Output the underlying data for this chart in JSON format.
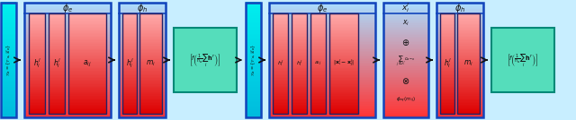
{
  "fig_width": 6.4,
  "fig_height": 1.34,
  "dpi": 100,
  "bg_color": "#C8EEFF",
  "cyan_top": "#00EEEE",
  "cyan_bot": "#00BBDD",
  "outer_top": "#AADDFF",
  "outer_bot": "#FF3333",
  "inner_top": "#FFAAAA",
  "inner_bot": "#DD0000",
  "teal_fill": "#55DDBB",
  "teal_edge": "#008877",
  "border_blue": "#1144BB",
  "sep_dark": "#222266",
  "arrow_color": "#111111",
  "text_color": "#111111"
}
